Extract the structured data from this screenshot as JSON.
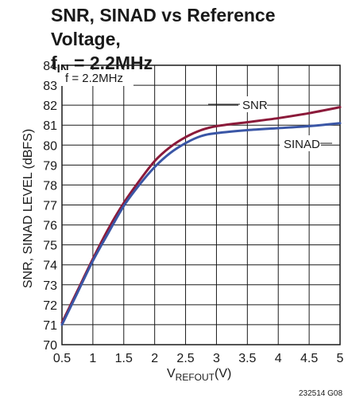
{
  "chart_data": {
    "type": "line",
    "title_line1": "SNR, SINAD vs Reference Voltage,",
    "title_line2_main": "f",
    "title_line2_sub": "IN",
    "title_line2_rest": " = 2.2MHz",
    "ylabel": "SNR, SINAD LEVEL (dBFS)",
    "xlabel_main": "V",
    "xlabel_sub": "REFOUT",
    "xlabel_rest": "(V)",
    "annotation": "f = 2.2MHz",
    "figure_code": "232514 G08",
    "xlim": [
      0.5,
      5
    ],
    "ylim": [
      70,
      84
    ],
    "x_ticks": [
      "0.5",
      "1",
      "1.5",
      "2",
      "2.5",
      "3",
      "3.5",
      "4",
      "4.5",
      "5"
    ],
    "y_ticks": [
      "70",
      "71",
      "72",
      "73",
      "74",
      "75",
      "76",
      "77",
      "78",
      "79",
      "80",
      "81",
      "82",
      "83",
      "84"
    ],
    "grid": true,
    "series": [
      {
        "name": "SNR",
        "color": "#8b1a3a",
        "x": [
          0.5,
          0.75,
          1.0,
          1.25,
          1.5,
          1.75,
          2.0,
          2.25,
          2.5,
          2.75,
          3.0,
          3.5,
          4.0,
          4.5,
          5.0
        ],
        "y": [
          71.1,
          72.7,
          74.3,
          75.8,
          77.1,
          78.2,
          79.2,
          79.9,
          80.4,
          80.75,
          80.95,
          81.15,
          81.35,
          81.6,
          81.9
        ]
      },
      {
        "name": "SINAD",
        "color": "#3a56a6",
        "x": [
          0.5,
          0.75,
          1.0,
          1.25,
          1.5,
          1.75,
          2.0,
          2.25,
          2.5,
          2.75,
          3.0,
          3.5,
          4.0,
          4.5,
          5.0
        ],
        "y": [
          71.0,
          72.6,
          74.2,
          75.6,
          76.95,
          78.0,
          78.9,
          79.6,
          80.1,
          80.45,
          80.6,
          80.75,
          80.85,
          80.95,
          81.1
        ]
      }
    ]
  }
}
